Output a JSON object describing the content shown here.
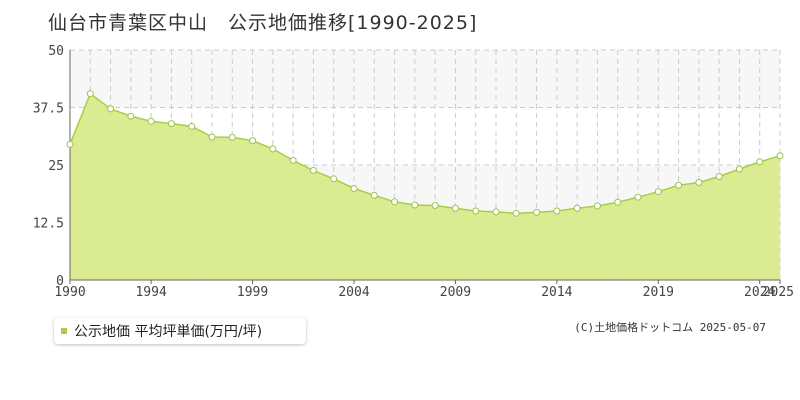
{
  "title": "仙台市青葉区中山　公示地価推移[1990-2025]",
  "credit": "(C)土地価格ドットコム 2025-05-07",
  "colors": {
    "fill": "#d8ea8c",
    "line": "#a8cd4a",
    "marker_stroke": "#9cc54a",
    "band": "#f7f7f7",
    "grid": "#cccccc",
    "legend_swatch": "#a8cd4a"
  },
  "chart_data": {
    "type": "area",
    "title": "仙台市青葉区中山　公示地価推移[1990-2025]",
    "xlabel": "",
    "ylabel": "",
    "xlim": [
      1990,
      2025
    ],
    "ylim": [
      0,
      50
    ],
    "yticks": [
      0,
      12.5,
      25,
      37.5,
      50
    ],
    "ytick_labels": [
      "0",
      "12.5",
      "25",
      "37.5",
      "50"
    ],
    "xtick_labels": [
      "1990",
      "1994",
      "1999",
      "2004",
      "2009",
      "2014",
      "2019",
      "2024",
      "2025"
    ],
    "xtick_values": [
      1990,
      1994,
      1999,
      2004,
      2009,
      2014,
      2019,
      2024,
      2025
    ],
    "grid": true,
    "legend_position": "bottom-left",
    "series": [
      {
        "name": "公示地価 平均坪単価(万円/坪)",
        "x": [
          1990,
          1991,
          1992,
          1993,
          1994,
          1995,
          1996,
          1997,
          1998,
          1999,
          2000,
          2001,
          2002,
          2003,
          2004,
          2005,
          2006,
          2007,
          2008,
          2009,
          2010,
          2011,
          2012,
          2013,
          2014,
          2015,
          2016,
          2017,
          2018,
          2019,
          2020,
          2021,
          2022,
          2023,
          2024,
          2025
        ],
        "values": [
          29.5,
          40.5,
          37.2,
          35.6,
          34.5,
          34.0,
          33.4,
          31.1,
          31.0,
          30.3,
          28.5,
          26.0,
          23.8,
          22.0,
          19.9,
          18.4,
          17.0,
          16.3,
          16.2,
          15.6,
          15.0,
          14.8,
          14.5,
          14.7,
          15.0,
          15.6,
          16.1,
          16.9,
          18.0,
          19.2,
          20.6,
          21.2,
          22.5,
          24.1,
          25.7,
          27.0
        ]
      }
    ]
  }
}
